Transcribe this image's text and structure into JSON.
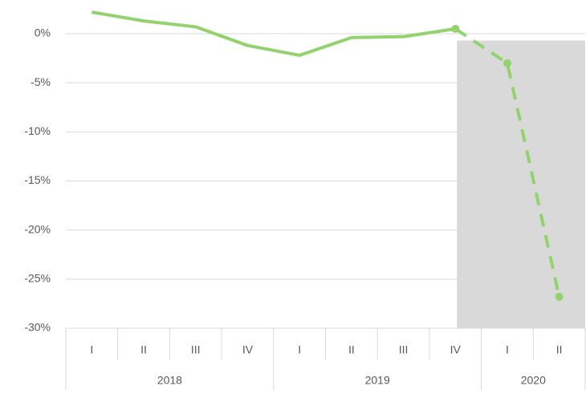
{
  "chart_data": {
    "type": "line",
    "categories": [
      "I",
      "II",
      "III",
      "IV",
      "I",
      "II",
      "III",
      "IV",
      "I",
      "II"
    ],
    "x_groups": [
      {
        "label": "2018",
        "count": 4
      },
      {
        "label": "2019",
        "count": 4
      },
      {
        "label": "2020",
        "count": 2
      }
    ],
    "series": [
      {
        "color": "#92d36e",
        "values": [
          2.2,
          1.3,
          0.7,
          -1.2,
          -2.2,
          -0.4,
          -0.3,
          0.5,
          -3.0,
          -26.8
        ]
      }
    ],
    "forecast_start": 7,
    "shade": {
      "from": 7,
      "top": -0.7,
      "color": "#d9d9d9"
    },
    "ylim": [
      -30,
      2.5
    ],
    "yticks": [
      {
        "value": 0,
        "label": "0%"
      },
      {
        "value": -5,
        "label": "-5%"
      },
      {
        "value": -10,
        "label": "-10%"
      },
      {
        "value": -15,
        "label": "-15%"
      },
      {
        "value": -20,
        "label": "-20%"
      },
      {
        "value": -25,
        "label": "-25%"
      },
      {
        "value": -30,
        "label": "-30%"
      }
    ],
    "grid": true
  }
}
